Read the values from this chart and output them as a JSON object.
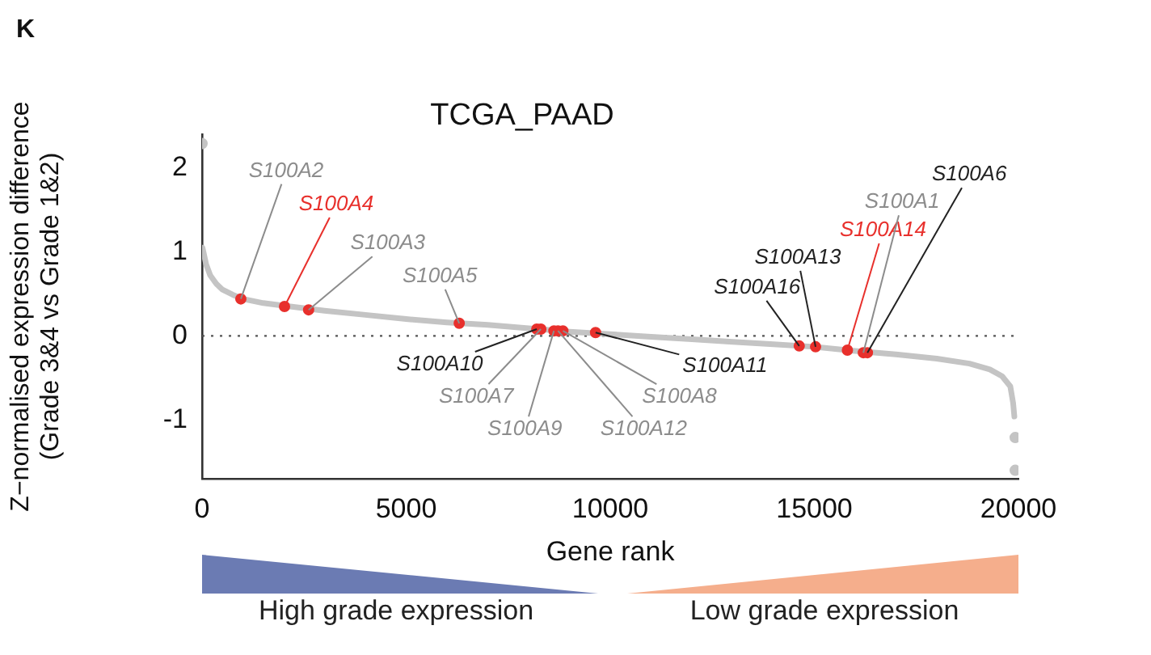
{
  "chart_data": {
    "type": "line",
    "title": "TCGA_PAAD",
    "xlabel": "Gene rank",
    "ylabel": "Z−normalised expression difference\n(Grade 3&4 vs Grade 1&2)",
    "xlim": [
      0,
      20000
    ],
    "xticks": [
      0,
      5000,
      10000,
      15000,
      20000
    ],
    "ylim": [
      -1.7,
      2.4
    ],
    "yticks": [
      -1,
      0,
      1,
      2
    ],
    "grid": false,
    "legend": false,
    "series": [
      {
        "color": "#c4c4c4",
        "x": [
          10,
          100,
          200,
          350,
          500,
          750,
          1000,
          1500,
          2000,
          3000,
          4000,
          5000,
          6000,
          7000,
          8000,
          8500,
          9000,
          10000,
          11000,
          12000,
          13000,
          14000,
          15000,
          16000,
          17000,
          18000,
          18800,
          19300,
          19600,
          19800,
          19870,
          19900
        ],
        "values": [
          1.05,
          0.85,
          0.72,
          0.62,
          0.55,
          0.49,
          0.44,
          0.39,
          0.36,
          0.3,
          0.25,
          0.2,
          0.16,
          0.13,
          0.09,
          0.07,
          0.05,
          0.02,
          -0.01,
          -0.04,
          -0.07,
          -0.1,
          -0.13,
          -0.18,
          -0.22,
          -0.27,
          -0.33,
          -0.4,
          -0.48,
          -0.6,
          -0.8,
          -0.96
        ]
      },
      {
        "type": "scatter",
        "color": "#c4c4c4",
        "x": [
          0,
          19920,
          19920
        ],
        "values": [
          2.29,
          -1.21,
          -1.6
        ]
      },
      {
        "type": "scatter",
        "color": "#e8302c",
        "x": [
          950,
          2020,
          2610,
          6300,
          8200,
          8300,
          8620,
          8720,
          8840,
          9640,
          14630,
          15030,
          15810,
          16200,
          16300
        ],
        "values": [
          0.44,
          0.35,
          0.31,
          0.15,
          0.08,
          0.08,
          0.06,
          0.06,
          0.06,
          0.04,
          -0.12,
          -0.13,
          -0.17,
          -0.2,
          -0.2
        ]
      }
    ],
    "ref_lines": [
      {
        "axis": "y",
        "value": 0,
        "line_style": "dotted",
        "color": "#555555"
      }
    ],
    "annotations": [
      {
        "text": "S100A2",
        "x": 950,
        "y": 0.44
      },
      {
        "text": "S100A4",
        "x": 2020,
        "y": 0.35
      },
      {
        "text": "S100A3",
        "x": 2610,
        "y": 0.31
      },
      {
        "text": "S100A5",
        "x": 6300,
        "y": 0.15
      },
      {
        "text": "S100A10",
        "x": 8200,
        "y": 0.08
      },
      {
        "text": "S100A7",
        "x": 8300,
        "y": 0.08
      },
      {
        "text": "S100A9",
        "x": 8620,
        "y": 0.06
      },
      {
        "text": "S100A12",
        "x": 8720,
        "y": 0.06
      },
      {
        "text": "S100A8",
        "x": 8840,
        "y": 0.06
      },
      {
        "text": "S100A11",
        "x": 9640,
        "y": 0.04
      },
      {
        "text": "S100A16",
        "x": 14630,
        "y": -0.12
      },
      {
        "text": "S100A13",
        "x": 15030,
        "y": -0.13
      },
      {
        "text": "S100A14",
        "x": 15810,
        "y": -0.17
      },
      {
        "text": "S100A1",
        "x": 16200,
        "y": -0.2
      },
      {
        "text": "S100A6",
        "x": 16300,
        "y": -0.2
      },
      "K",
      "High grade expression",
      "Low grade expression"
    ]
  }
}
